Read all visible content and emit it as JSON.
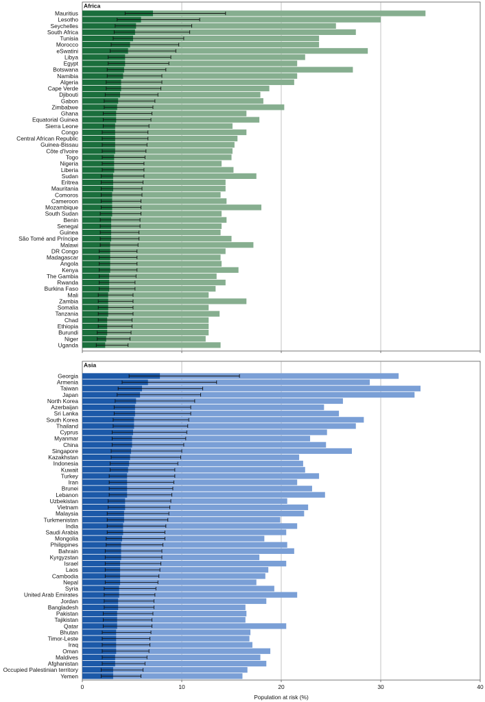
{
  "chart_data": [
    {
      "type": "bar",
      "title": "Africa",
      "colors": {
        "dark": "#1a6e3c",
        "light": "#86ae8f"
      },
      "xlim": [
        0,
        40
      ],
      "xticks": [
        "0",
        "10",
        "20",
        "30",
        "40"
      ],
      "grid": "vertical",
      "categories": [
        "Mauritius",
        "Lesotho",
        "Seychelles",
        "South Africa",
        "Tunisia",
        "Morocco",
        "eSwatini",
        "Libya",
        "Egypt",
        "Botswana",
        "Namibia",
        "Algeria",
        "Cape Verde",
        "Djibouti",
        "Gabon",
        "Zimbabwe",
        "Ghana",
        "Equatorial Guinea",
        "Sierra Leone",
        "Congo",
        "Central African Republic",
        "Guinea-Bissau",
        "Côte d'Ivoire",
        "Togo",
        "Nigeria",
        "Liberia",
        "Sudan",
        "Eritrea",
        "Mauritania",
        "Comoros",
        "Cameroon",
        "Mozambique",
        "South Sudan",
        "Benin",
        "Senegal",
        "Guinea",
        "São Tomé and Príncipe",
        "Malawi",
        "DR Congo",
        "Madagascar",
        "Angola",
        "Kenya",
        "The Gambia",
        "Rwanda",
        "Burkina Faso",
        "Mali",
        "Zambia",
        "Somalia",
        "Tanzania",
        "Chad",
        "Ethiopia",
        "Burundi",
        "Niger",
        "Uganda"
      ],
      "series": [
        {
          "values": [
            7.1,
            5.9,
            5.4,
            5.3,
            5.1,
            4.8,
            4.6,
            4.3,
            4.3,
            4.2,
            4.1,
            3.9,
            3.9,
            3.8,
            3.6,
            3.5,
            3.4,
            3.4,
            3.3,
            3.3,
            3.3,
            3.3,
            3.3,
            3.2,
            3.2,
            3.2,
            3.1,
            3.1,
            3.1,
            3.0,
            3.0,
            3.0,
            3.0,
            2.9,
            2.9,
            2.9,
            2.9,
            2.8,
            2.8,
            2.8,
            2.8,
            2.8,
            2.7,
            2.7,
            2.7,
            2.6,
            2.6,
            2.6,
            2.6,
            2.5,
            2.5,
            2.5,
            2.4,
            2.3
          ]
        },
        {
          "values": [
            34.5,
            30.0,
            25.5,
            27.5,
            23.8,
            23.8,
            28.7,
            22.4,
            21.6,
            27.2,
            21.6,
            21.3,
            18.8,
            17.9,
            18.2,
            20.3,
            16.5,
            17.8,
            15.1,
            16.5,
            15.6,
            15.3,
            15.1,
            15.0,
            14.0,
            15.2,
            17.5,
            14.4,
            14.4,
            13.9,
            14.5,
            18.0,
            14.0,
            14.5,
            14.0,
            13.9,
            15.0,
            17.2,
            14.4,
            13.9,
            14.0,
            15.7,
            13.5,
            14.4,
            13.4,
            12.7,
            16.5,
            12.7,
            13.8,
            12.7,
            12.7,
            12.7,
            12.4,
            13.9
          ]
        }
      ],
      "error_intervals": [
        [
          4.3,
          14.4
        ],
        [
          3.5,
          11.8
        ],
        [
          3.3,
          11.0
        ],
        [
          3.2,
          10.8
        ],
        [
          3.1,
          10.2
        ],
        [
          2.9,
          9.7
        ],
        [
          2.8,
          9.4
        ],
        [
          2.6,
          8.9
        ],
        [
          2.6,
          8.7
        ],
        [
          2.5,
          8.4
        ],
        [
          2.5,
          8.0
        ],
        [
          2.4,
          8.0
        ],
        [
          2.4,
          7.9
        ],
        [
          2.3,
          7.6
        ],
        [
          2.2,
          7.3
        ],
        [
          2.2,
          7.1
        ],
        [
          2.1,
          7.0
        ],
        [
          2.1,
          6.9
        ],
        [
          2.1,
          6.7
        ],
        [
          2.0,
          6.6
        ],
        [
          2.0,
          6.6
        ],
        [
          2.0,
          6.5
        ],
        [
          2.0,
          6.4
        ],
        [
          2.0,
          6.3
        ],
        [
          2.0,
          6.2
        ],
        [
          2.0,
          6.2
        ],
        [
          1.9,
          6.2
        ],
        [
          1.9,
          6.1
        ],
        [
          1.9,
          6.0
        ],
        [
          1.9,
          6.0
        ],
        [
          1.9,
          5.9
        ],
        [
          1.9,
          5.9
        ],
        [
          1.8,
          5.9
        ],
        [
          1.8,
          5.8
        ],
        [
          1.8,
          5.8
        ],
        [
          1.8,
          5.7
        ],
        [
          1.8,
          5.7
        ],
        [
          1.8,
          5.6
        ],
        [
          1.7,
          5.5
        ],
        [
          1.7,
          5.5
        ],
        [
          1.7,
          5.5
        ],
        [
          1.7,
          5.5
        ],
        [
          1.7,
          5.4
        ],
        [
          1.7,
          5.3
        ],
        [
          1.7,
          5.3
        ],
        [
          1.6,
          5.1
        ],
        [
          1.6,
          5.1
        ],
        [
          1.6,
          5.1
        ],
        [
          1.6,
          5.1
        ],
        [
          1.6,
          5.0
        ],
        [
          1.6,
          5.0
        ],
        [
          1.5,
          4.9
        ],
        [
          1.5,
          4.8
        ],
        [
          1.4,
          4.6
        ]
      ]
    },
    {
      "type": "bar",
      "title": "Asia",
      "xlabel": "Population at risk (%)",
      "colors": {
        "dark": "#1c59a8",
        "light": "#7a9fd6"
      },
      "xlim": [
        0,
        40
      ],
      "xticks": [
        "0",
        "10",
        "20",
        "30",
        "40"
      ],
      "grid": "vertical",
      "categories": [
        "Georgia",
        "Armenia",
        "Taiwan",
        "Japan",
        "North Korea",
        "Azerbaijan",
        "Sri Lanka",
        "South Korea",
        "Thailand",
        "Cyprus",
        "Myanmar",
        "China",
        "Singapore",
        "Kazakhstan",
        "Indonesia",
        "Kuwait",
        "Turkey",
        "Iran",
        "Brunei",
        "Lebanon",
        "Uzbekistan",
        "Vietnam",
        "Malaysia",
        "Turkmenistan",
        "India",
        "Saudi Arabia",
        "Mongolia",
        "Philippines",
        "Bahrain",
        "Kyrgyzstan",
        "Israel",
        "Laos",
        "Cambodia",
        "Nepal",
        "Syria",
        "United Arab Emirates",
        "Jordan",
        "Bangladesh",
        "Pakistan",
        "Tajikistan",
        "Qatar",
        "Bhutan",
        "Timor-Leste",
        "Iraq",
        "Oman",
        "Maldives",
        "Afghanistan",
        "Occupied Palestinian territory",
        "Yemen"
      ],
      "series": [
        {
          "values": [
            7.8,
            6.6,
            6.0,
            5.8,
            5.4,
            5.3,
            5.3,
            5.2,
            5.2,
            5.1,
            5.0,
            5.0,
            4.9,
            4.8,
            4.7,
            4.6,
            4.5,
            4.5,
            4.5,
            4.5,
            4.3,
            4.3,
            4.2,
            4.2,
            4.1,
            4.1,
            4.0,
            3.9,
            3.9,
            3.9,
            3.8,
            3.8,
            3.8,
            3.8,
            3.7,
            3.7,
            3.6,
            3.6,
            3.5,
            3.5,
            3.5,
            3.4,
            3.4,
            3.4,
            3.4,
            3.3,
            3.3,
            3.1,
            3.1
          ]
        },
        {
          "values": [
            31.8,
            28.9,
            34.0,
            33.4,
            26.2,
            24.3,
            25.8,
            28.3,
            27.5,
            24.6,
            22.9,
            24.5,
            27.1,
            21.8,
            22.2,
            22.4,
            23.8,
            21.6,
            23.1,
            24.4,
            20.6,
            22.7,
            22.3,
            19.9,
            21.6,
            20.5,
            18.3,
            20.6,
            21.3,
            17.8,
            20.5,
            18.7,
            18.4,
            17.5,
            19.3,
            21.6,
            18.5,
            16.4,
            16.5,
            16.4,
            20.5,
            16.9,
            16.8,
            17.1,
            18.9,
            17.9,
            18.5,
            16.6,
            16.1
          ]
        }
      ],
      "error_intervals": [
        [
          4.7,
          15.8
        ],
        [
          4.0,
          13.5
        ],
        [
          3.6,
          12.1
        ],
        [
          3.5,
          11.9
        ],
        [
          3.3,
          11.3
        ],
        [
          3.2,
          10.9
        ],
        [
          3.2,
          10.9
        ],
        [
          3.1,
          10.7
        ],
        [
          3.1,
          10.6
        ],
        [
          3.0,
          10.5
        ],
        [
          3.0,
          10.4
        ],
        [
          3.0,
          10.2
        ],
        [
          2.9,
          10.0
        ],
        [
          2.9,
          9.9
        ],
        [
          2.8,
          9.6
        ],
        [
          2.8,
          9.3
        ],
        [
          2.7,
          9.3
        ],
        [
          2.7,
          9.2
        ],
        [
          2.7,
          9.1
        ],
        [
          2.7,
          9.0
        ],
        [
          2.6,
          8.9
        ],
        [
          2.6,
          8.8
        ],
        [
          2.5,
          8.7
        ],
        [
          2.5,
          8.6
        ],
        [
          2.5,
          8.4
        ],
        [
          2.5,
          8.3
        ],
        [
          2.4,
          8.3
        ],
        [
          2.4,
          8.1
        ],
        [
          2.3,
          8.0
        ],
        [
          2.3,
          8.0
        ],
        [
          2.3,
          7.9
        ],
        [
          2.3,
          7.8
        ],
        [
          2.3,
          7.7
        ],
        [
          2.3,
          7.6
        ],
        [
          2.2,
          7.4
        ],
        [
          2.2,
          7.3
        ],
        [
          2.2,
          7.2
        ],
        [
          2.2,
          7.2
        ],
        [
          2.1,
          7.1
        ],
        [
          2.1,
          7.0
        ],
        [
          2.1,
          7.0
        ],
        [
          2.0,
          6.9
        ],
        [
          2.0,
          6.8
        ],
        [
          2.0,
          6.8
        ],
        [
          2.0,
          6.7
        ],
        [
          2.0,
          6.5
        ],
        [
          2.0,
          6.3
        ],
        [
          1.9,
          6.1
        ],
        [
          1.9,
          5.9
        ]
      ]
    }
  ]
}
